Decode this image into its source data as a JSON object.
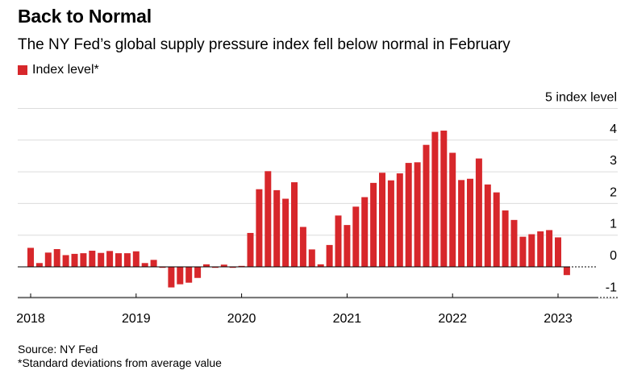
{
  "title": "Back to Normal",
  "subtitle": "The NY Fed’s global supply pressure index fell below normal in February",
  "legend": {
    "label": "Index level*",
    "color": "#d7272b"
  },
  "footer": {
    "source": "Source: NY Fed",
    "note": "*Standard deviations from average value"
  },
  "chart_data": {
    "type": "bar",
    "title": "Back to Normal",
    "ylabel": "index level",
    "ylim": [
      -1,
      5
    ],
    "yticks": [
      5,
      4,
      3,
      2,
      1,
      0,
      -1
    ],
    "ytick_labels": [
      "5 index level",
      "4",
      "3",
      "2",
      "1",
      "0",
      "-1"
    ],
    "grid": true,
    "legend_position": "top-left",
    "start": "2018-01",
    "xtick_labels": [
      "2018",
      "2019",
      "2020",
      "2021",
      "2022",
      "2023"
    ],
    "series": [
      {
        "name": "Index level*",
        "color": "#d7272b",
        "values": [
          0.6,
          0.12,
          0.45,
          0.56,
          0.37,
          0.41,
          0.43,
          0.51,
          0.44,
          0.5,
          0.43,
          0.43,
          0.49,
          0.12,
          0.22,
          0.0,
          -0.65,
          -0.55,
          -0.5,
          -0.35,
          0.08,
          -0.02,
          0.07,
          -0.03,
          0.03,
          1.07,
          2.45,
          3.02,
          2.42,
          2.15,
          2.67,
          1.26,
          0.55,
          0.08,
          0.69,
          1.62,
          1.32,
          1.9,
          2.2,
          2.65,
          2.97,
          2.73,
          2.95,
          3.28,
          3.3,
          3.85,
          4.26,
          4.3,
          3.6,
          2.74,
          2.78,
          3.42,
          2.6,
          2.35,
          1.78,
          1.48,
          0.95,
          1.03,
          1.12,
          1.16,
          0.93,
          -0.26
        ]
      }
    ]
  }
}
